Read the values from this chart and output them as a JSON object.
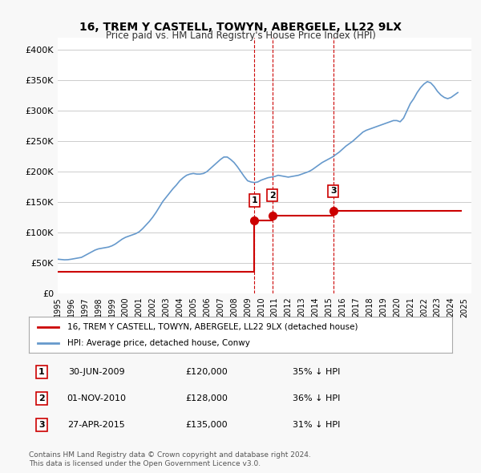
{
  "title": "16, TREM Y CASTELL, TOWYN, ABERGELE, LL22 9LX",
  "subtitle": "Price paid vs. HM Land Registry's House Price Index (HPI)",
  "ylabel_ticks": [
    "£0",
    "£50K",
    "£100K",
    "£150K",
    "£200K",
    "£250K",
    "£300K",
    "£350K",
    "£400K"
  ],
  "ytick_values": [
    0,
    50000,
    100000,
    150000,
    200000,
    250000,
    300000,
    350000,
    400000
  ],
  "ylim": [
    0,
    420000
  ],
  "xlim_start": 1995.0,
  "xlim_end": 2025.5,
  "sale_dates": [
    2009.5,
    2010.83,
    2015.32
  ],
  "sale_prices": [
    120000,
    128000,
    135000
  ],
  "sale_labels": [
    "1",
    "2",
    "3"
  ],
  "red_line_color": "#cc0000",
  "blue_line_color": "#6699cc",
  "legend_label_red": "16, TREM Y CASTELL, TOWYN, ABERGELE, LL22 9LX (detached house)",
  "legend_label_blue": "HPI: Average price, detached house, Conwy",
  "table_rows": [
    [
      "1",
      "30-JUN-2009",
      "£120,000",
      "35% ↓ HPI"
    ],
    [
      "2",
      "01-NOV-2010",
      "£128,000",
      "36% ↓ HPI"
    ],
    [
      "3",
      "27-APR-2015",
      "£135,000",
      "31% ↓ HPI"
    ]
  ],
  "footer_text": "Contains HM Land Registry data © Crown copyright and database right 2024.\nThis data is licensed under the Open Government Licence v3.0.",
  "hpi_data": {
    "years": [
      1995.0,
      1995.25,
      1995.5,
      1995.75,
      1996.0,
      1996.25,
      1996.5,
      1996.75,
      1997.0,
      1997.25,
      1997.5,
      1997.75,
      1998.0,
      1998.25,
      1998.5,
      1998.75,
      1999.0,
      1999.25,
      1999.5,
      1999.75,
      2000.0,
      2000.25,
      2000.5,
      2000.75,
      2001.0,
      2001.25,
      2001.5,
      2001.75,
      2002.0,
      2002.25,
      2002.5,
      2002.75,
      2003.0,
      2003.25,
      2003.5,
      2003.75,
      2004.0,
      2004.25,
      2004.5,
      2004.75,
      2005.0,
      2005.25,
      2005.5,
      2005.75,
      2006.0,
      2006.25,
      2006.5,
      2006.75,
      2007.0,
      2007.25,
      2007.5,
      2007.75,
      2008.0,
      2008.25,
      2008.5,
      2008.75,
      2009.0,
      2009.25,
      2009.5,
      2009.75,
      2010.0,
      2010.25,
      2010.5,
      2010.75,
      2011.0,
      2011.25,
      2011.5,
      2011.75,
      2012.0,
      2012.25,
      2012.5,
      2012.75,
      2013.0,
      2013.25,
      2013.5,
      2013.75,
      2014.0,
      2014.25,
      2014.5,
      2014.75,
      2015.0,
      2015.25,
      2015.5,
      2015.75,
      2016.0,
      2016.25,
      2016.5,
      2016.75,
      2017.0,
      2017.25,
      2017.5,
      2017.75,
      2018.0,
      2018.25,
      2018.5,
      2018.75,
      2019.0,
      2019.25,
      2019.5,
      2019.75,
      2020.0,
      2020.25,
      2020.5,
      2020.75,
      2021.0,
      2021.25,
      2021.5,
      2021.75,
      2022.0,
      2022.25,
      2022.5,
      2022.75,
      2023.0,
      2023.25,
      2023.5,
      2023.75,
      2024.0,
      2024.25,
      2024.5
    ],
    "values": [
      56000,
      55500,
      55000,
      55200,
      56000,
      57000,
      58000,
      59000,
      62000,
      65000,
      68000,
      71000,
      73000,
      74000,
      75000,
      76000,
      78000,
      81000,
      85000,
      89000,
      92000,
      94000,
      96000,
      98000,
      101000,
      106000,
      112000,
      118000,
      125000,
      133000,
      142000,
      151000,
      158000,
      165000,
      172000,
      178000,
      185000,
      190000,
      194000,
      196000,
      197000,
      196000,
      196000,
      197000,
      200000,
      205000,
      210000,
      215000,
      220000,
      224000,
      224000,
      220000,
      215000,
      208000,
      200000,
      192000,
      185000,
      183000,
      182000,
      183000,
      186000,
      188000,
      190000,
      191000,
      192000,
      194000,
      193000,
      192000,
      191000,
      192000,
      193000,
      194000,
      196000,
      198000,
      200000,
      203000,
      207000,
      211000,
      215000,
      218000,
      221000,
      224000,
      228000,
      232000,
      237000,
      242000,
      246000,
      250000,
      255000,
      260000,
      265000,
      268000,
      270000,
      272000,
      274000,
      276000,
      278000,
      280000,
      282000,
      284000,
      284000,
      282000,
      288000,
      300000,
      312000,
      320000,
      330000,
      338000,
      344000,
      348000,
      346000,
      340000,
      332000,
      326000,
      322000,
      320000,
      322000,
      326000,
      330000
    ]
  },
  "price_line_data": {
    "years": [
      1995.0,
      2009.5,
      2009.5,
      2010.83,
      2010.83,
      2015.32,
      2015.32,
      2024.75
    ],
    "values": [
      35000,
      35000,
      120000,
      120000,
      128000,
      128000,
      135000,
      135000
    ]
  },
  "vline_dates": [
    2009.5,
    2010.83,
    2015.32
  ],
  "vline_color": "#cc0000",
  "vline_style": "--",
  "background_color": "#f8f8f8",
  "plot_bg_color": "#ffffff"
}
